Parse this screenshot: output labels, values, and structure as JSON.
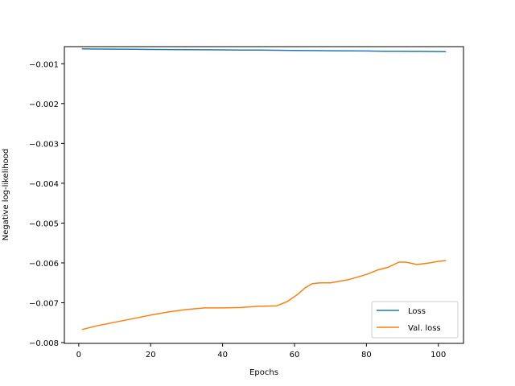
{
  "chart_data": {
    "type": "line",
    "title": "",
    "xlabel": "Epochs",
    "ylabel": "Negative log-likelihood",
    "xlim": [
      -4,
      107
    ],
    "ylim": [
      -0.00802,
      -0.00057
    ],
    "xticks": [
      0,
      20,
      40,
      60,
      80,
      100
    ],
    "xtick_labels": [
      "0",
      "20",
      "40",
      "60",
      "80",
      "100"
    ],
    "yticks": [
      -0.001,
      -0.002,
      -0.003,
      -0.004,
      -0.005,
      -0.006,
      -0.007,
      -0.008
    ],
    "ytick_labels": [
      "−0.001",
      "−0.002",
      "−0.003",
      "−0.004",
      "−0.005",
      "−0.006",
      "−0.007",
      "−0.008"
    ],
    "grid": false,
    "legend_position": "lower-right",
    "series": [
      {
        "name": "Loss",
        "color": "#1f77b4",
        "x": [
          1,
          5,
          10,
          15,
          20,
          25,
          30,
          35,
          40,
          45,
          50,
          55,
          60,
          65,
          70,
          75,
          80,
          85,
          90,
          95,
          100,
          102
        ],
        "y": [
          -0.000625,
          -0.00063,
          -0.000633,
          -0.000636,
          -0.00064,
          -0.000643,
          -0.000646,
          -0.000648,
          -0.00065,
          -0.000654,
          -0.000657,
          -0.00066,
          -0.000664,
          -0.000668,
          -0.000672,
          -0.000676,
          -0.00068,
          -0.000685,
          -0.000688,
          -0.00069,
          -0.000693,
          -0.000695
        ]
      },
      {
        "name": "Val. loss",
        "color": "#ff7f0e",
        "x": [
          1,
          5,
          10,
          15,
          20,
          25,
          30,
          35,
          40,
          45,
          50,
          55,
          58,
          61,
          63,
          65,
          67,
          70,
          75,
          80,
          83,
          86,
          89,
          91,
          94,
          97,
          100,
          102
        ],
        "y": [
          -0.00767,
          -0.00758,
          -0.00749,
          -0.0074,
          -0.00731,
          -0.00723,
          -0.00717,
          -0.00713,
          -0.00713,
          -0.00712,
          -0.00709,
          -0.00708,
          -0.00697,
          -0.00678,
          -0.00662,
          -0.00652,
          -0.0065,
          -0.0065,
          -0.00642,
          -0.00629,
          -0.00618,
          -0.00611,
          -0.00598,
          -0.00598,
          -0.00604,
          -0.00601,
          -0.00596,
          -0.00594
        ]
      }
    ]
  }
}
